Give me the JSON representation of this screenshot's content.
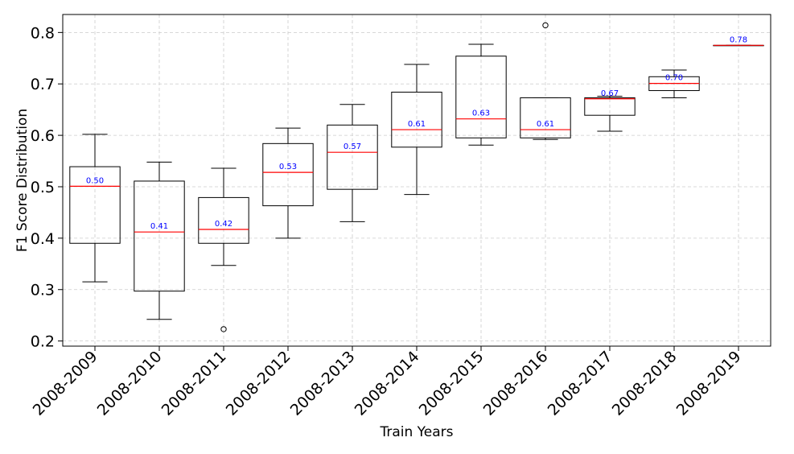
{
  "chart_data": {
    "type": "box",
    "title": "",
    "xlabel": "Train Years",
    "ylabel": "F1 Score Distribution",
    "ylim": [
      0.19,
      0.835
    ],
    "yticks": [
      "0.2",
      "0.3",
      "0.4",
      "0.5",
      "0.6",
      "0.7",
      "0.8"
    ],
    "grid": true,
    "colors": {
      "box": "#000000",
      "median": "#ff0000",
      "median_label": "#0000ff",
      "grid": "#cccccc"
    },
    "boxes": [
      {
        "category": "2008-2009",
        "whisker_low": 0.315,
        "q1": 0.39,
        "median": 0.501,
        "q3": 0.539,
        "whisker_high": 0.602,
        "outliers": [],
        "label": "0.50"
      },
      {
        "category": "2008-2010",
        "whisker_low": 0.242,
        "q1": 0.297,
        "median": 0.412,
        "q3": 0.511,
        "whisker_high": 0.548,
        "outliers": [],
        "label": "0.41"
      },
      {
        "category": "2008-2011",
        "whisker_low": 0.347,
        "q1": 0.39,
        "median": 0.417,
        "q3": 0.479,
        "whisker_high": 0.536,
        "outliers": [
          0.223
        ],
        "label": "0.42"
      },
      {
        "category": "2008-2012",
        "whisker_low": 0.4,
        "q1": 0.463,
        "median": 0.528,
        "q3": 0.584,
        "whisker_high": 0.614,
        "outliers": [],
        "label": "0.53"
      },
      {
        "category": "2008-2013",
        "whisker_low": 0.432,
        "q1": 0.495,
        "median": 0.567,
        "q3": 0.62,
        "whisker_high": 0.66,
        "outliers": [],
        "label": "0.57"
      },
      {
        "category": "2008-2014",
        "whisker_low": 0.485,
        "q1": 0.577,
        "median": 0.611,
        "q3": 0.684,
        "whisker_high": 0.738,
        "outliers": [],
        "label": "0.61"
      },
      {
        "category": "2008-2015",
        "whisker_low": 0.581,
        "q1": 0.595,
        "median": 0.632,
        "q3": 0.754,
        "whisker_high": 0.777,
        "outliers": [],
        "label": "0.63"
      },
      {
        "category": "2008-2016",
        "whisker_low": 0.592,
        "q1": 0.595,
        "median": 0.611,
        "q3": 0.673,
        "whisker_high": 0.673,
        "outliers": [
          0.814
        ],
        "label": "0.61"
      },
      {
        "category": "2008-2017",
        "whisker_low": 0.608,
        "q1": 0.639,
        "median": 0.671,
        "q3": 0.673,
        "whisker_high": 0.676,
        "outliers": [],
        "label": "0.67"
      },
      {
        "category": "2008-2018",
        "whisker_low": 0.673,
        "q1": 0.687,
        "median": 0.701,
        "q3": 0.714,
        "whisker_high": 0.727,
        "outliers": [],
        "label": "0.70"
      },
      {
        "category": "2008-2019",
        "whisker_low": 0.775,
        "q1": 0.775,
        "median": 0.775,
        "q3": 0.775,
        "whisker_high": 0.775,
        "outliers": [],
        "label": "0.78"
      }
    ]
  }
}
